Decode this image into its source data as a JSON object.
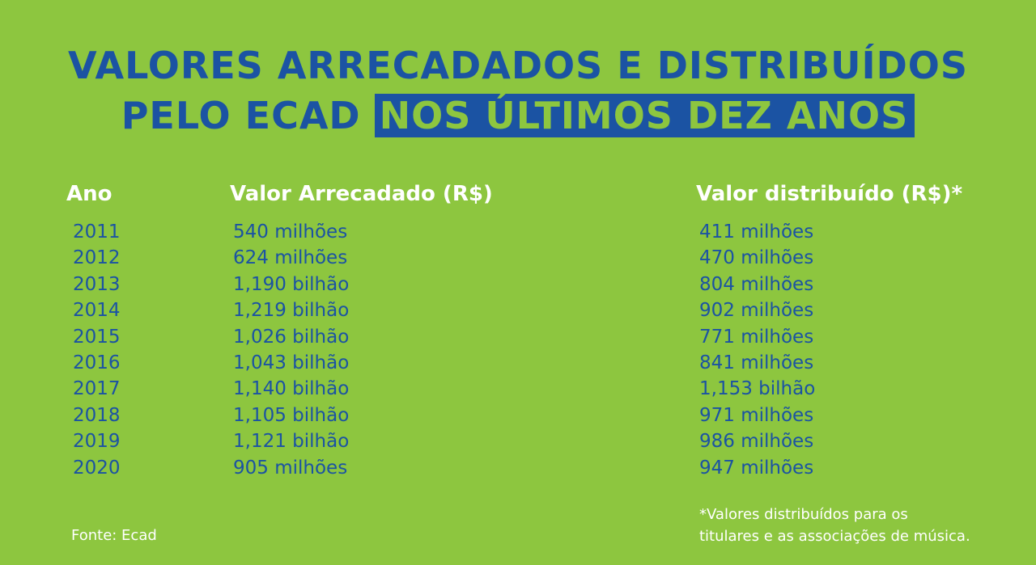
{
  "title": {
    "line1": "VALORES ARRECADADOS E DISTRIBUÍDOS",
    "line2_plain": "PELO ECAD",
    "line2_highlight": "NOS ÚLTIMOS DEZ ANOS"
  },
  "table": {
    "headers": {
      "year": "Ano",
      "collected": "Valor Arrecadado (R$)",
      "distributed": "Valor distribuído (R$)*"
    },
    "rows": [
      {
        "year": "2011",
        "collected": "540 milhões",
        "distributed": "411 milhões"
      },
      {
        "year": "2012",
        "collected": "624 milhões",
        "distributed": "470 milhões"
      },
      {
        "year": "2013",
        "collected": "1,190 bilhão",
        "distributed": "804 milhões"
      },
      {
        "year": "2014",
        "collected": "1,219 bilhão",
        "distributed": "902 milhões"
      },
      {
        "year": "2015",
        "collected": "1,026 bilhão",
        "distributed": "771 milhões"
      },
      {
        "year": "2016",
        "collected": "1,043 bilhão",
        "distributed": "841 milhões"
      },
      {
        "year": "2017",
        "collected": "1,140 bilhão",
        "distributed": "1,153 bilhão"
      },
      {
        "year": "2018",
        "collected": "1,105 bilhão",
        "distributed": "971 milhões"
      },
      {
        "year": "2019",
        "collected": "1,121 bilhão",
        "distributed": "986 milhões"
      },
      {
        "year": "2020",
        "collected": "905 milhões",
        "distributed": "947 milhões"
      }
    ]
  },
  "source": "Fonte: Ecad",
  "footnote": {
    "line1": "*Valores distribuídos para os",
    "line2": "titulares e as associações de música."
  },
  "colors": {
    "background": "#8dc63f",
    "primary_blue": "#1b53a3",
    "header_text": "#ffffff"
  }
}
